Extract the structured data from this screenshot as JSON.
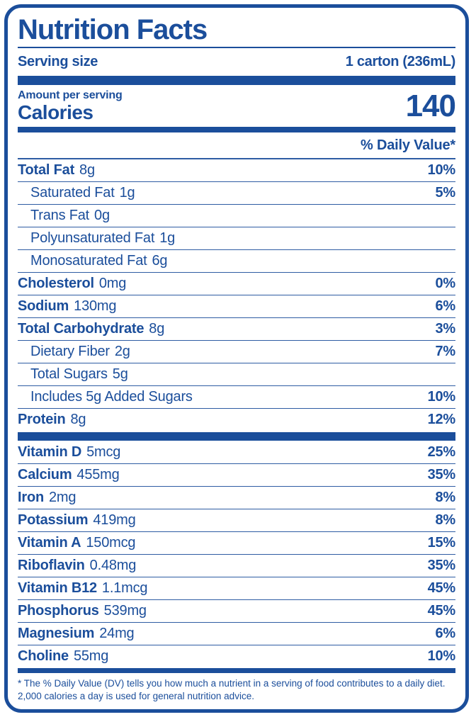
{
  "label": {
    "title": "Nutrition Facts",
    "serving": {
      "label": "Serving size",
      "value": "1 carton (236mL)"
    },
    "calories": {
      "heading": "Amount per serving",
      "label": "Calories",
      "value": "140"
    },
    "daily_value_heading": "% Daily Value*",
    "nutrients": [
      {
        "name": "Total Fat",
        "amount": "8g",
        "dv": "10%",
        "indent": 0
      },
      {
        "name": "Saturated Fat",
        "amount": "1g",
        "dv": "5%",
        "indent": 1
      },
      {
        "name": "Trans Fat",
        "amount": "0g",
        "dv": "",
        "indent": 1
      },
      {
        "name": "Polyunsaturated Fat",
        "amount": "1g",
        "dv": "",
        "indent": 1
      },
      {
        "name": "Monosaturated Fat",
        "amount": "6g",
        "dv": "",
        "indent": 1
      },
      {
        "name": "Cholesterol",
        "amount": "0mg",
        "dv": "0%",
        "indent": 0
      },
      {
        "name": "Sodium",
        "amount": "130mg",
        "dv": "6%",
        "indent": 0
      },
      {
        "name": "Total Carbohydrate",
        "amount": "8g",
        "dv": "3%",
        "indent": 0
      },
      {
        "name": "Dietary Fiber",
        "amount": "2g",
        "dv": "7%",
        "indent": 1
      },
      {
        "name": "Total Sugars",
        "amount": "5g",
        "dv": "",
        "indent": 1
      },
      {
        "name": "Includes 5g Added Sugars",
        "amount": "",
        "dv": "10%",
        "indent": 1
      },
      {
        "name": "Protein",
        "amount": "8g",
        "dv": "12%",
        "indent": 0
      }
    ],
    "vitamins": [
      {
        "name": "Vitamin D",
        "amount": "5mcg",
        "dv": "25%",
        "indent": 0
      },
      {
        "name": "Calcium",
        "amount": "455mg",
        "dv": "35%",
        "indent": 0
      },
      {
        "name": "Iron",
        "amount": "2mg",
        "dv": "8%",
        "indent": 0
      },
      {
        "name": "Potassium",
        "amount": "419mg",
        "dv": "8%",
        "indent": 0
      },
      {
        "name": "Vitamin A",
        "amount": "150mcg",
        "dv": "15%",
        "indent": 0
      },
      {
        "name": "Riboflavin",
        "amount": "0.48mg",
        "dv": "35%",
        "indent": 0
      },
      {
        "name": "Vitamin B12",
        "amount": "1.1mcg",
        "dv": "45%",
        "indent": 0
      },
      {
        "name": "Phosphorus",
        "amount": "539mg",
        "dv": "45%",
        "indent": 0
      },
      {
        "name": "Magnesium",
        "amount": "24mg",
        "dv": "6%",
        "indent": 0
      },
      {
        "name": "Choline",
        "amount": "55mg",
        "dv": "10%",
        "indent": 0
      }
    ],
    "footnote": "* The % Daily Value (DV) tells you how much a nutrient in a serving of food contributes to a daily diet. 2,000 calories a day is used for general nutrition advice.",
    "colors": {
      "primary": "#1B4E9B",
      "background": "#FFFFFF"
    }
  }
}
